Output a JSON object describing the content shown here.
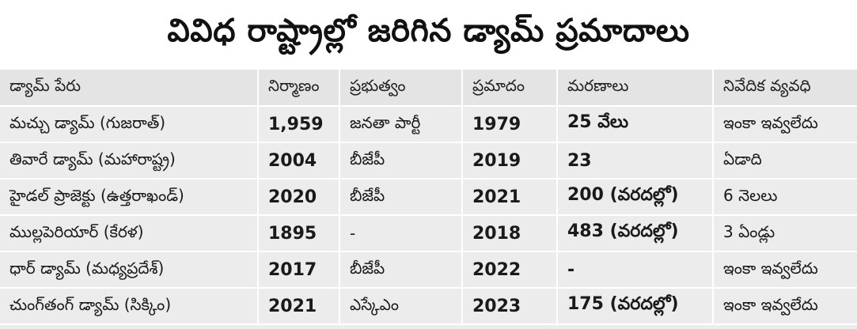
{
  "title": "వివిధ రాష్ట్రాల్లో జరిగిన డ్యామ్ ప్రమాదాలు",
  "headers": [
    "డ్యామ్ పేరు",
    "నిర్మాణం",
    "ప్రభుత్వం",
    "ప్రమాదం",
    "మరణాలు",
    "నివేదిక వ్యవధి"
  ],
  "rows": [
    [
      "మచ్చు డ్యామ్ (గుజరాత్)",
      "1,959",
      "జనతా పార్టీ",
      "1979",
      "25 వేలు",
      "ఇంకా ఇవ్వలేదు"
    ],
    [
      "తివారే డ్యామ్ (మహారాష్ట్ర)",
      "2004",
      "బీజేపీ",
      "2019",
      "23",
      "ఏడాది"
    ],
    [
      "హైడల్ ప్రాజెక్టు (ఉత్తరాఖండ్)",
      "2020",
      "బీజేపీ",
      "2021",
      "200 (వరదల్లో)",
      "6 నెలలు"
    ],
    [
      "ముల్లపెరియార్ (కేరళ)",
      "1895",
      "-",
      "2018",
      "483 (వరదల్లో)",
      "3 ఏండ్లు"
    ],
    [
      "ధార్ డ్యామ్ (మధ్యప్రదేశ్)",
      "2017",
      "బీజేపీ",
      "2022",
      "-",
      "ఇంకా ఇవ్వలేదు"
    ],
    [
      "చుంగ్‌తంగ్ డ్యామ్ (సిక్కిం)",
      "2021",
      "ఎస్కేఎం",
      "2023",
      "175 (వరదల్లో)",
      "ఇంకా ఇవ్వలేదు"
    ]
  ],
  "colors": {
    "background": "#ececec",
    "header_background": "#e4e4e4",
    "title_background": "#ffffff",
    "cell_divider": "#ffffff",
    "text": "#1a1a1a"
  }
}
